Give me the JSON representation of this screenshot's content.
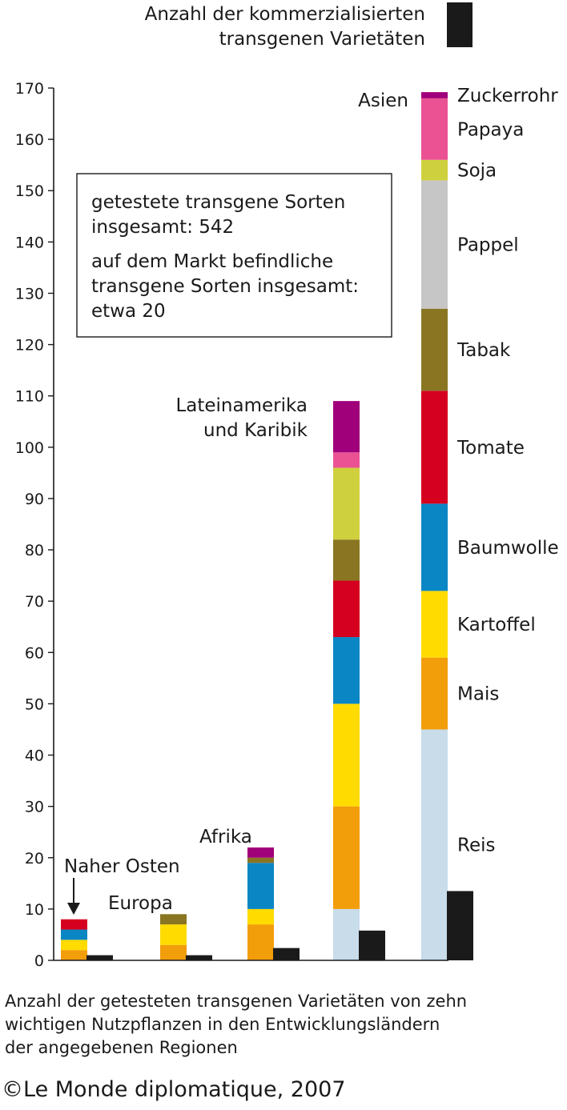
{
  "chart_data": {
    "type": "bar",
    "stacked": true,
    "legend_marker": {
      "label_lines": [
        "Anzahl der kommerzialisierten",
        "transgenen Varietäten"
      ],
      "color": "#1a1a1a"
    },
    "y_ticks": [
      0,
      10,
      20,
      30,
      40,
      50,
      60,
      70,
      80,
      90,
      100,
      110,
      120,
      130,
      140,
      150,
      160,
      170
    ],
    "ylim": [
      0,
      170
    ],
    "crops": [
      {
        "name": "Reis",
        "color": "#c8dcea"
      },
      {
        "name": "Mais",
        "color": "#f29d0a"
      },
      {
        "name": "Kartoffel",
        "color": "#ffdb00"
      },
      {
        "name": "Baumwolle",
        "color": "#0a86c4"
      },
      {
        "name": "Tomate",
        "color": "#d5001f"
      },
      {
        "name": "Tabak",
        "color": "#8a7622"
      },
      {
        "name": "Pappel",
        "color": "#c6c6c6"
      },
      {
        "name": "Soja",
        "color": "#cfd03d"
      },
      {
        "name": "Papaya",
        "color": "#ea5293"
      },
      {
        "name": "Zuckerrohr",
        "color": "#a0007a"
      }
    ],
    "regions": [
      {
        "label_lines": [
          "Naher Osten"
        ],
        "tested": [
          0,
          2,
          2,
          2,
          2,
          0,
          0,
          0,
          0,
          0
        ],
        "commercialized": 1
      },
      {
        "label_lines": [
          "Europa"
        ],
        "tested": [
          0,
          3,
          4,
          0,
          0,
          2,
          0,
          0,
          0,
          0
        ],
        "commercialized": 1
      },
      {
        "label_lines": [
          "Afrika"
        ],
        "tested": [
          0,
          7,
          3,
          9,
          0,
          1,
          0,
          0,
          0,
          2
        ],
        "commercialized": 2.4
      },
      {
        "label_lines": [
          "Lateinamerika",
          "und Karibik"
        ],
        "tested": [
          10,
          20,
          20,
          13,
          11,
          8,
          0,
          14,
          3,
          10
        ],
        "commercialized": 5.8
      },
      {
        "label_lines": [
          "Asien"
        ],
        "tested": [
          45,
          14,
          13,
          17,
          22,
          16,
          25,
          4,
          12,
          1.2
        ],
        "commercialized": 13.5
      }
    ],
    "info_box": {
      "text1": [
        "getestete transgene Sorten",
        "insgesamt: 542"
      ],
      "text2": [
        "auf dem Markt befindliche",
        "transgene Sorten insgesamt:",
        "etwa 20"
      ]
    },
    "caption": [
      "Anzahl der getesteten transgenen Varietäten von zehn",
      "wichtigen Nutzpflanzen in den Entwicklungsländern",
      "der angegebenen Regionen"
    ],
    "copyright": "©Le Monde diplomatique, 2007"
  }
}
